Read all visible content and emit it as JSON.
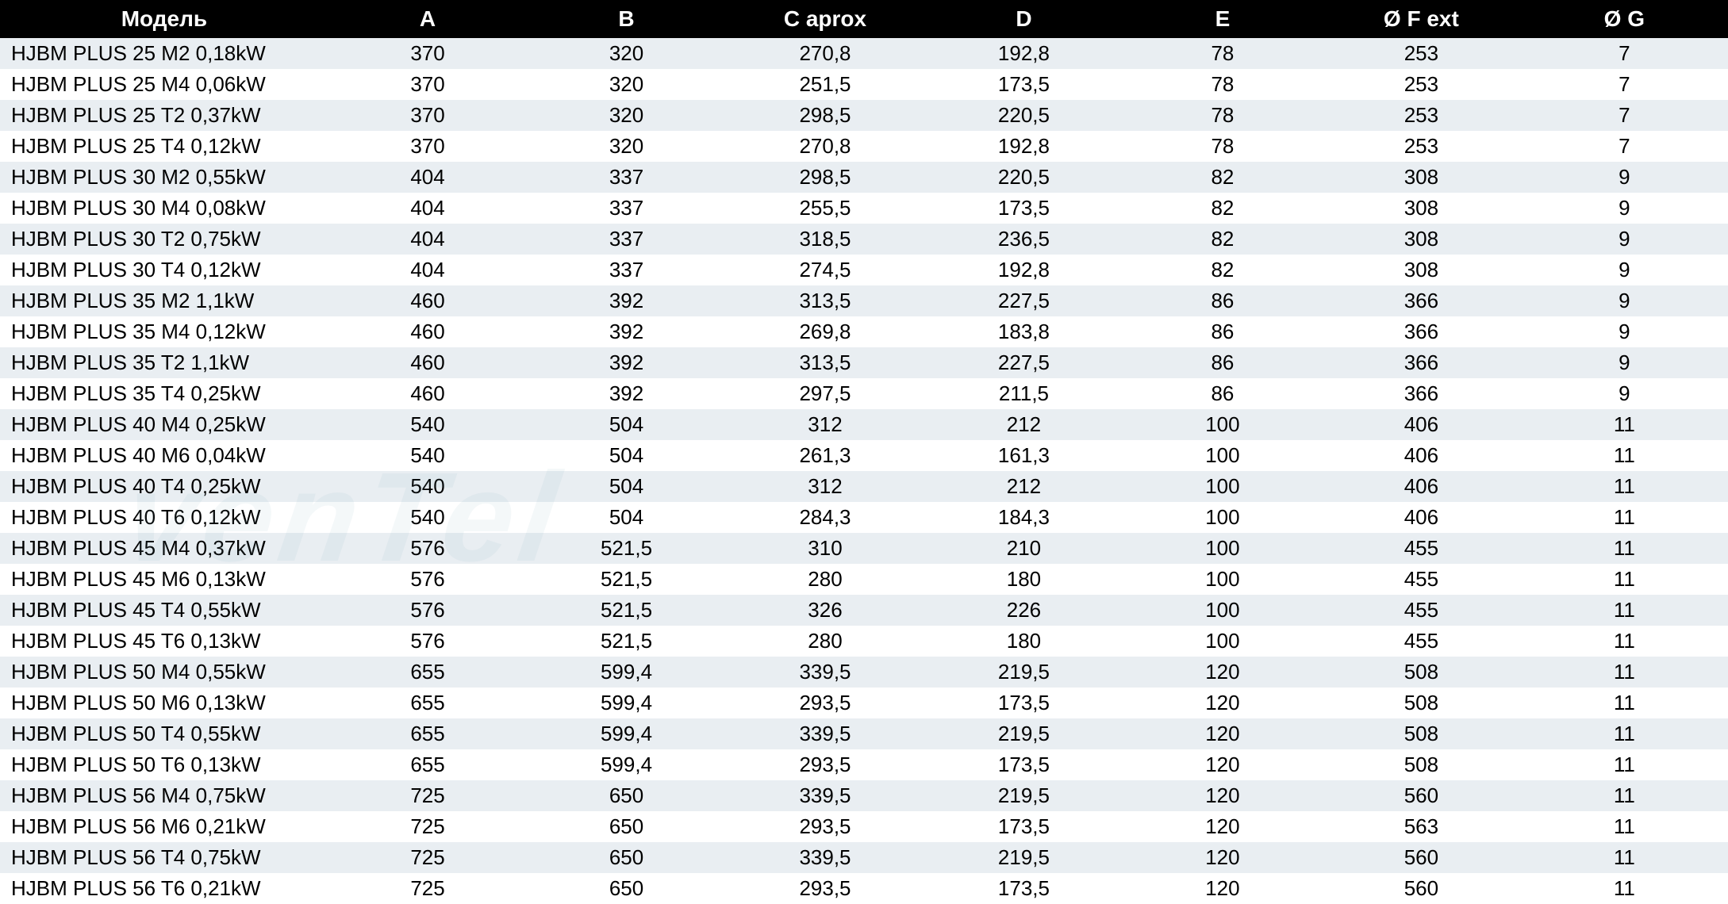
{
  "table": {
    "columns": [
      "Модель",
      "A",
      "B",
      "C  aprox",
      "D",
      "E",
      "Ø F ext",
      "Ø G"
    ],
    "header_bg": "#000000",
    "header_fg": "#ffffff",
    "header_fontsize": 28,
    "header_fontweight": "bold",
    "row_odd_bg": "#e9eef2",
    "row_even_bg": "#ffffff",
    "cell_fontsize": 26,
    "cell_color": "#000000",
    "col_widths_pct": [
      19,
      11.5,
      11.5,
      11.5,
      11.5,
      11.5,
      11.5,
      12
    ],
    "col_align": [
      "left",
      "center",
      "center",
      "center",
      "center",
      "center",
      "center",
      "center"
    ],
    "rows": [
      [
        "HJBM PLUS 25 M2 0,18kW",
        "370",
        "320",
        "270,8",
        "192,8",
        "78",
        "253",
        "7"
      ],
      [
        "HJBM PLUS 25 M4 0,06kW",
        "370",
        "320",
        "251,5",
        "173,5",
        "78",
        "253",
        "7"
      ],
      [
        "HJBM PLUS 25 T2 0,37kW",
        "370",
        "320",
        "298,5",
        "220,5",
        "78",
        "253",
        "7"
      ],
      [
        "HJBM PLUS 25 T4 0,12kW",
        "370",
        "320",
        "270,8",
        "192,8",
        "78",
        "253",
        "7"
      ],
      [
        "HJBM PLUS 30 M2 0,55kW",
        "404",
        "337",
        "298,5",
        "220,5",
        "82",
        "308",
        "9"
      ],
      [
        "HJBM PLUS 30 M4 0,08kW",
        "404",
        "337",
        "255,5",
        "173,5",
        "82",
        "308",
        "9"
      ],
      [
        "HJBM PLUS 30 T2 0,75kW",
        "404",
        "337",
        "318,5",
        "236,5",
        "82",
        "308",
        "9"
      ],
      [
        "HJBM PLUS 30 T4 0,12kW",
        "404",
        "337",
        "274,5",
        "192,8",
        "82",
        "308",
        "9"
      ],
      [
        "HJBM PLUS 35 M2 1,1kW",
        "460",
        "392",
        "313,5",
        "227,5",
        "86",
        "366",
        "9"
      ],
      [
        "HJBM PLUS 35 M4 0,12kW",
        "460",
        "392",
        "269,8",
        "183,8",
        "86",
        "366",
        "9"
      ],
      [
        "HJBM PLUS 35 T2 1,1kW",
        "460",
        "392",
        "313,5",
        "227,5",
        "86",
        "366",
        "9"
      ],
      [
        "HJBM PLUS 35 T4 0,25kW",
        "460",
        "392",
        "297,5",
        "211,5",
        "86",
        "366",
        "9"
      ],
      [
        "HJBM PLUS 40 M4 0,25kW",
        "540",
        "504",
        "312",
        "212",
        "100",
        "406",
        "11"
      ],
      [
        "HJBM PLUS 40 M6 0,04kW",
        "540",
        "504",
        "261,3",
        "161,3",
        "100",
        "406",
        "11"
      ],
      [
        "HJBM PLUS 40 T4 0,25kW",
        "540",
        "504",
        "312",
        "212",
        "100",
        "406",
        "11"
      ],
      [
        "HJBM PLUS 40 T6 0,12kW",
        "540",
        "504",
        "284,3",
        "184,3",
        "100",
        "406",
        "11"
      ],
      [
        "HJBM PLUS 45 M4 0,37kW",
        "576",
        "521,5",
        "310",
        "210",
        "100",
        "455",
        "11"
      ],
      [
        "HJBM PLUS 45 M6 0,13kW",
        "576",
        "521,5",
        "280",
        "180",
        "100",
        "455",
        "11"
      ],
      [
        "HJBM PLUS 45 T4 0,55kW",
        "576",
        "521,5",
        "326",
        "226",
        "100",
        "455",
        "11"
      ],
      [
        "HJBM PLUS 45 T6 0,13kW",
        "576",
        "521,5",
        "280",
        "180",
        "100",
        "455",
        "11"
      ],
      [
        "HJBM PLUS 50 M4 0,55kW",
        "655",
        "599,4",
        "339,5",
        "219,5",
        "120",
        "508",
        "11"
      ],
      [
        "HJBM PLUS 50 M6 0,13kW",
        "655",
        "599,4",
        "293,5",
        "173,5",
        "120",
        "508",
        "11"
      ],
      [
        "HJBM PLUS 50 T4 0,55kW",
        "655",
        "599,4",
        "339,5",
        "219,5",
        "120",
        "508",
        "11"
      ],
      [
        "HJBM PLUS 50 T6 0,13kW",
        "655",
        "599,4",
        "293,5",
        "173,5",
        "120",
        "508",
        "11"
      ],
      [
        "HJBM PLUS 56 M4 0,75kW",
        "725",
        "650",
        "339,5",
        "219,5",
        "120",
        "560",
        "11"
      ],
      [
        "HJBM PLUS 56 M6 0,21kW",
        "725",
        "650",
        "293,5",
        "173,5",
        "120",
        "563",
        "11"
      ],
      [
        "HJBM PLUS 56 T4 0,75kW",
        "725",
        "650",
        "339,5",
        "219,5",
        "120",
        "560",
        "11"
      ],
      [
        "HJBM PLUS 56 T6 0,21kW",
        "725",
        "650",
        "293,5",
        "173,5",
        "120",
        "560",
        "11"
      ]
    ]
  },
  "watermark": {
    "text": "venTel",
    "color": "rgba(120,160,180,0.08)",
    "fontsize": 160
  }
}
